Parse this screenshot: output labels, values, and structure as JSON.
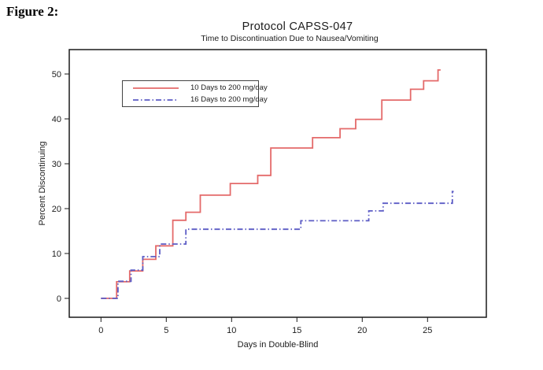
{
  "figure_label": "Figure 2:",
  "chart_data": {
    "type": "line",
    "subtype": "step-survival",
    "title": "Protocol CAPSS-047",
    "subtitle": "Time to Discontinuation Due to Nausea/Vomiting",
    "xlabel": "Days in Double-Blind",
    "ylabel": "Percent Discontinuing",
    "x_ticks": [
      0,
      5,
      10,
      15,
      20,
      25
    ],
    "y_ticks": [
      0,
      10,
      20,
      30,
      40,
      50
    ],
    "xlim": [
      -2.4,
      29.5
    ],
    "ylim": [
      -4.2,
      55.5
    ],
    "grid": false,
    "legend_position": "upper-left-inside",
    "colors": {
      "series_10_days": "#e46a6a",
      "series_16_days": "#5c5cc5",
      "frame": "#1a1a1a",
      "text": "#1c1c1c",
      "background": "#ffffff"
    },
    "series": [
      {
        "name": "10 Days to 200 mg/day",
        "style": "solid",
        "color": "#e46a6a",
        "points": [
          [
            0,
            0
          ],
          [
            1.2,
            0
          ],
          [
            1.2,
            3.7
          ],
          [
            2.2,
            3.7
          ],
          [
            2.2,
            6.1
          ],
          [
            3.2,
            6.1
          ],
          [
            3.2,
            8.7
          ],
          [
            4.2,
            8.7
          ],
          [
            4.2,
            11.7
          ],
          [
            5.5,
            11.7
          ],
          [
            5.5,
            17.4
          ],
          [
            6.5,
            17.4
          ],
          [
            6.5,
            19.2
          ],
          [
            7.6,
            19.2
          ],
          [
            7.6,
            23.0
          ],
          [
            9.9,
            23.0
          ],
          [
            9.9,
            25.6
          ],
          [
            12.0,
            25.6
          ],
          [
            12.0,
            27.4
          ],
          [
            13.0,
            27.4
          ],
          [
            13.0,
            33.5
          ],
          [
            16.2,
            33.5
          ],
          [
            16.2,
            35.8
          ],
          [
            18.3,
            35.8
          ],
          [
            18.3,
            37.8
          ],
          [
            19.5,
            37.8
          ],
          [
            19.5,
            39.9
          ],
          [
            21.5,
            39.9
          ],
          [
            21.5,
            44.2
          ],
          [
            23.7,
            44.2
          ],
          [
            23.7,
            46.6
          ],
          [
            24.7,
            46.6
          ],
          [
            24.7,
            48.5
          ],
          [
            25.8,
            48.5
          ],
          [
            25.8,
            50.9
          ],
          [
            26.0,
            50.9
          ]
        ]
      },
      {
        "name": "16 Days to 200 mg/day",
        "style": "dash-dot",
        "color": "#5c5cc5",
        "points": [
          [
            0,
            0
          ],
          [
            1.3,
            0
          ],
          [
            1.3,
            3.8
          ],
          [
            2.3,
            3.8
          ],
          [
            2.3,
            6.3
          ],
          [
            3.2,
            6.3
          ],
          [
            3.2,
            9.3
          ],
          [
            4.5,
            9.3
          ],
          [
            4.5,
            12.1
          ],
          [
            6.5,
            12.1
          ],
          [
            6.5,
            15.4
          ],
          [
            15.3,
            15.4
          ],
          [
            15.3,
            17.3
          ],
          [
            20.5,
            17.3
          ],
          [
            20.5,
            19.5
          ],
          [
            21.6,
            19.5
          ],
          [
            21.6,
            21.2
          ],
          [
            26.9,
            21.2
          ],
          [
            26.9,
            23.8
          ],
          [
            27.0,
            23.8
          ]
        ]
      }
    ]
  }
}
